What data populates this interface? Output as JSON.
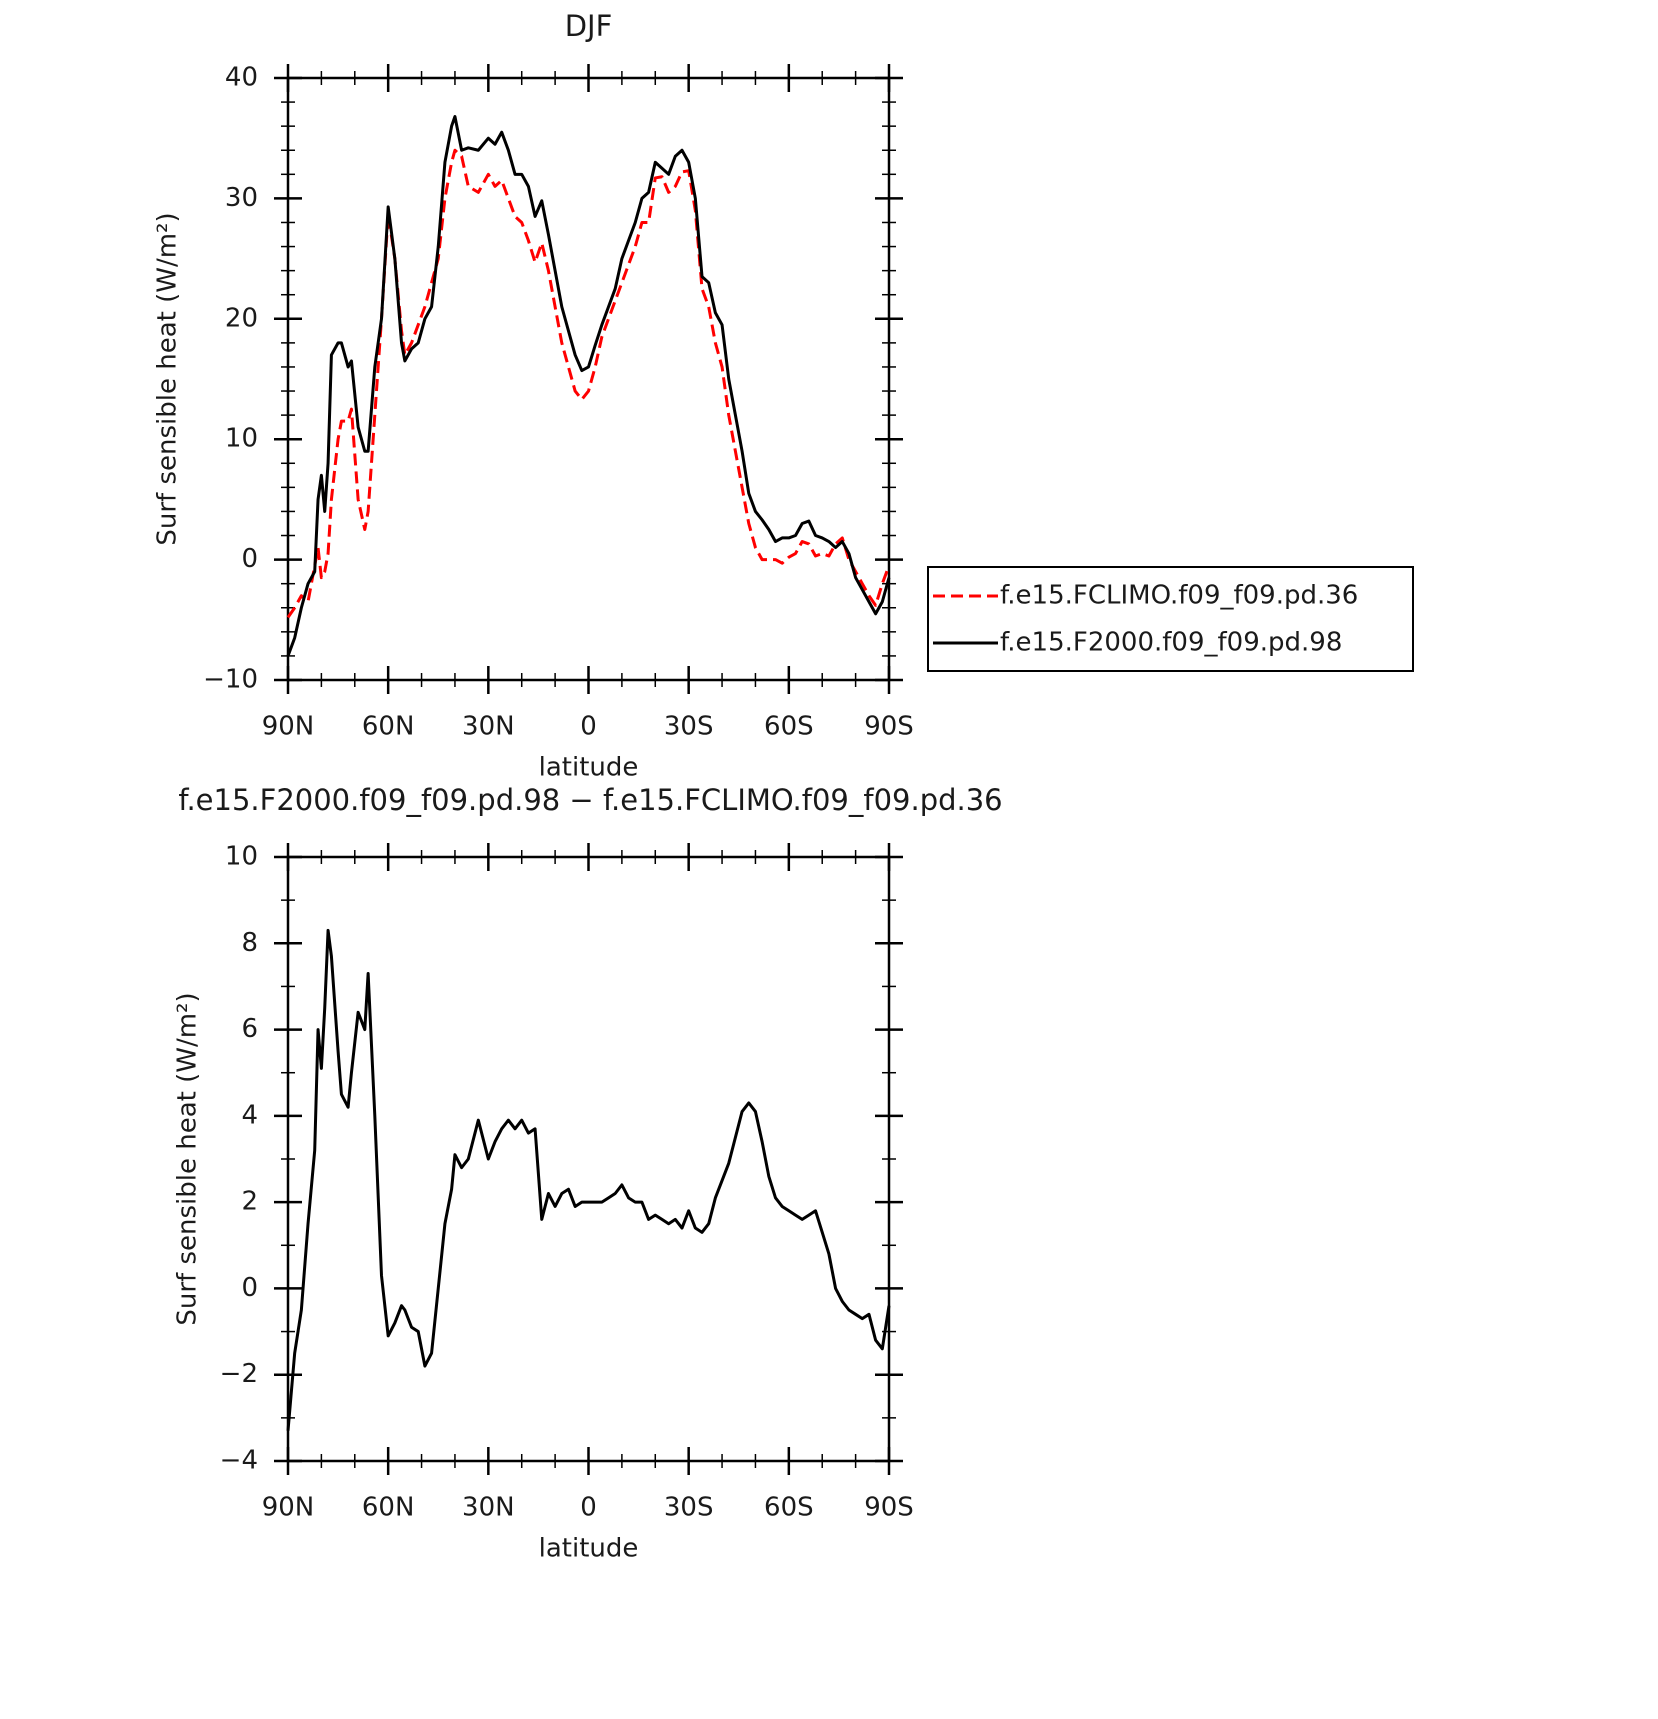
{
  "chart_data": [
    {
      "type": "line",
      "title": "DJF",
      "xlabel": "latitude",
      "ylabel": "Surf sensible heat (W/m²)",
      "x": [
        90,
        88,
        86,
        84,
        82,
        81,
        80,
        79,
        78,
        77,
        75,
        74,
        72,
        71,
        69,
        67,
        66,
        64,
        62,
        60,
        58,
        56,
        55,
        53,
        51,
        49,
        47,
        45,
        43,
        41,
        40,
        38,
        36,
        33,
        30,
        28,
        26,
        24,
        22,
        20,
        18,
        16,
        14,
        12,
        10,
        8,
        6,
        4,
        2,
        0,
        -2,
        -4,
        -6,
        -8,
        -10,
        -12,
        -14,
        -16,
        -18,
        -20,
        -22,
        -24,
        -26,
        -28,
        -30,
        -32,
        -34,
        -36,
        -38,
        -40,
        -42,
        -44,
        -46,
        -48,
        -50,
        -52,
        -54,
        -56,
        -58,
        -60,
        -62,
        -64,
        -66,
        -68,
        -70,
        -72,
        -74,
        -76,
        -78,
        -80,
        -82,
        -84,
        -86,
        -88,
        -90
      ],
      "xlim": [
        90,
        -90
      ],
      "xticks": [
        {
          "value": 90,
          "label": "90N"
        },
        {
          "value": 60,
          "label": "60N"
        },
        {
          "value": 30,
          "label": "30N"
        },
        0,
        {
          "value": -30,
          "label": "30S"
        },
        {
          "value": -60,
          "label": "60S"
        },
        {
          "value": -90,
          "label": "90S"
        }
      ],
      "ylim": [
        -10,
        40
      ],
      "yticks": [
        {
          "value": -10,
          "label": "−10"
        },
        0,
        10,
        20,
        30,
        40
      ],
      "legend": "right",
      "series": [
        {
          "name": "f.e15.FCLIMO.f09_f09.pd.36",
          "color": "#ff0000",
          "linestyle": "dashed",
          "values": [
            -4.8,
            -4,
            -3,
            -3.5,
            -0.5,
            1,
            -1.5,
            -1,
            0.5,
            5,
            10,
            11.5,
            11.5,
            12.5,
            5,
            2.5,
            4,
            12,
            20,
            28.7,
            25,
            19,
            17,
            18,
            19.5,
            21,
            23,
            25,
            30,
            33,
            34,
            33.5,
            31,
            30.5,
            32,
            31,
            31.5,
            30,
            28.5,
            28,
            26.5,
            24.7,
            26.3,
            24,
            21,
            18,
            16,
            14,
            13.3,
            14,
            16,
            18.5,
            20,
            21.5,
            23,
            24.5,
            26,
            28,
            28,
            31.7,
            31.8,
            30.5,
            31,
            32.2,
            32.3,
            29,
            22.5,
            21,
            18,
            16,
            12,
            9,
            6,
            3,
            1,
            0,
            0,
            0,
            -0.3,
            0.2,
            0.5,
            1.5,
            1.3,
            0.3,
            0.5,
            0.3,
            1.3,
            1.8,
            0,
            -1,
            -2,
            -3,
            -3.8,
            -2,
            -0.5
          ]
        },
        {
          "name": "f.e15.F2000.f09_f09.pd.98",
          "color": "#000000",
          "linestyle": "solid",
          "values": [
            -8,
            -6.5,
            -4,
            -2,
            -1,
            5,
            7,
            4,
            8,
            17,
            18,
            18,
            16,
            16.5,
            11,
            9,
            9,
            16,
            20,
            29.3,
            25,
            18,
            16.5,
            17.5,
            18,
            20,
            21,
            26,
            33,
            36,
            36.8,
            34,
            34.2,
            34,
            35,
            34.5,
            35.5,
            34,
            32,
            32,
            31,
            28.5,
            29.8,
            27,
            24,
            21,
            19,
            17,
            15.7,
            16,
            17.8,
            19.5,
            21,
            22.5,
            25,
            26.5,
            28,
            30,
            30.5,
            33,
            32.5,
            32,
            33.5,
            34,
            33,
            30,
            23.5,
            23,
            20.5,
            19.5,
            15,
            12,
            9,
            5.5,
            4,
            3.3,
            2.5,
            1.5,
            1.8,
            1.8,
            2,
            3,
            3.2,
            2,
            1.8,
            1.5,
            1,
            1.5,
            0.5,
            -1.5,
            -2.5,
            -3.5,
            -4.5,
            -3.5,
            -1.5
          ]
        }
      ]
    },
    {
      "type": "line",
      "title": "f.e15.F2000.f09_f09.pd.98 − f.e15.FCLIMO.f09_f09.pd.36",
      "xlabel": "latitude",
      "ylabel": "Surf sensible heat (W/m²)",
      "x": [
        90,
        88,
        86,
        84,
        82,
        81,
        80,
        79,
        78,
        77,
        75,
        74,
        72,
        71,
        69,
        67,
        66,
        64,
        62,
        60,
        58,
        56,
        55,
        53,
        51,
        49,
        47,
        45,
        43,
        41,
        40,
        38,
        36,
        33,
        30,
        28,
        26,
        24,
        22,
        20,
        18,
        16,
        14,
        12,
        10,
        8,
        6,
        4,
        2,
        0,
        -2,
        -4,
        -6,
        -8,
        -10,
        -12,
        -14,
        -16,
        -18,
        -20,
        -22,
        -24,
        -26,
        -28,
        -30,
        -32,
        -34,
        -36,
        -38,
        -40,
        -42,
        -44,
        -46,
        -48,
        -50,
        -52,
        -54,
        -56,
        -58,
        -60,
        -62,
        -64,
        -66,
        -68,
        -70,
        -72,
        -74,
        -76,
        -78,
        -80,
        -82,
        -84,
        -86,
        -88,
        -90
      ],
      "xlim": [
        90,
        -90
      ],
      "xticks": [
        {
          "value": 90,
          "label": "90N"
        },
        {
          "value": 60,
          "label": "60N"
        },
        {
          "value": 30,
          "label": "30N"
        },
        0,
        {
          "value": -30,
          "label": "30S"
        },
        {
          "value": -60,
          "label": "60S"
        },
        {
          "value": -90,
          "label": "90S"
        }
      ],
      "ylim": [
        -4,
        10
      ],
      "yticks": [
        {
          "value": -4,
          "label": "−4"
        },
        {
          "value": -2,
          "label": "−2"
        },
        0,
        2,
        4,
        6,
        8,
        10
      ],
      "color": "#000000",
      "values": [
        -3.3,
        -1.5,
        -0.5,
        1.5,
        3.2,
        6,
        5.1,
        6.5,
        8.3,
        7.7,
        5.5,
        4.5,
        4.2,
        5,
        6.4,
        6,
        7.3,
        4,
        0.3,
        -1.1,
        -0.8,
        -0.4,
        -0.5,
        -0.9,
        -1,
        -1.8,
        -1.5,
        0,
        1.5,
        2.3,
        3.1,
        2.8,
        3,
        3.9,
        3,
        3.4,
        3.7,
        3.9,
        3.7,
        3.9,
        3.6,
        3.7,
        1.6,
        2.2,
        1.9,
        2.2,
        2.3,
        1.9,
        2,
        2,
        2,
        2,
        2.1,
        2.2,
        2.4,
        2.1,
        2,
        2,
        1.6,
        1.7,
        1.6,
        1.5,
        1.6,
        1.4,
        1.8,
        1.4,
        1.3,
        1.5,
        2.1,
        2.5,
        2.9,
        3.5,
        4.1,
        4.3,
        4.1,
        3.4,
        2.6,
        2.1,
        1.9,
        1.8,
        1.7,
        1.6,
        1.7,
        1.8,
        1.3,
        0.8,
        0,
        -0.3,
        -0.5,
        -0.6,
        -0.7,
        -0.6,
        -1.2,
        -1.4,
        -0.4
      ]
    }
  ]
}
